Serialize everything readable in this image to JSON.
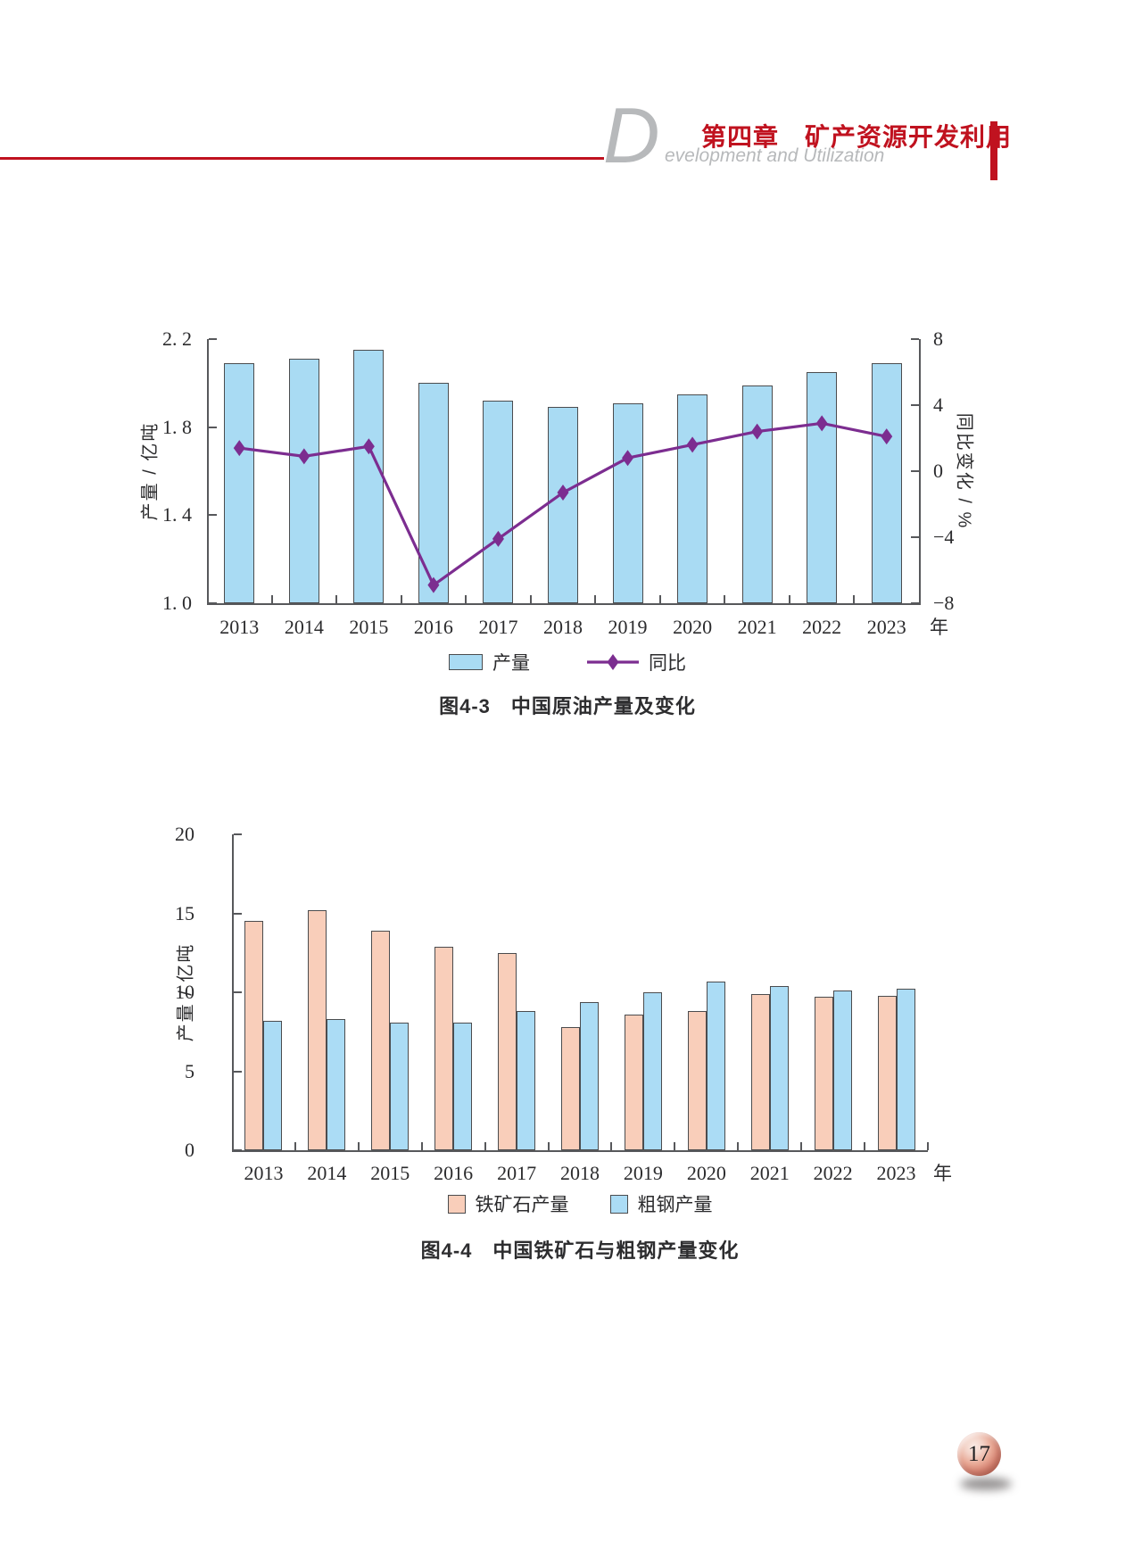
{
  "page": {
    "number": "17",
    "background_color": "#ffffff"
  },
  "header": {
    "big_letter": "D",
    "chapter_title": "第四章　矿产资源开发利用",
    "subtitle": "evelopment and Utilization",
    "accent_color": "#C0121F",
    "gray_color": "#b7b9bb"
  },
  "chart_data": [
    {
      "id": "figure-4-3",
      "type": "bar",
      "subtype": "combo-bar-line",
      "caption": "图4-3　中国原油产量及变化",
      "categories": [
        "2013",
        "2014",
        "2015",
        "2016",
        "2017",
        "2018",
        "2019",
        "2020",
        "2021",
        "2022",
        "2023"
      ],
      "x_suffix": "年",
      "left_axis": {
        "label": "产量 / 亿吨",
        "min": 1.0,
        "max": 2.2,
        "ticks": [
          {
            "value": 2.2,
            "label": "2. 2"
          },
          {
            "value": 1.8,
            "label": "1. 8"
          },
          {
            "value": 1.4,
            "label": "1. 4"
          },
          {
            "value": 1.0,
            "label": "1. 0"
          }
        ]
      },
      "right_axis": {
        "label": "同比变化 / %",
        "min": -8,
        "max": 8,
        "ticks": [
          {
            "value": 8,
            "label": "8"
          },
          {
            "value": 4,
            "label": "4"
          },
          {
            "value": 0,
            "label": "0"
          },
          {
            "value": -4,
            "label": "−4"
          },
          {
            "value": -8,
            "label": "−8"
          }
        ]
      },
      "series": [
        {
          "name": "产量",
          "type": "bar",
          "axis": "left",
          "color": "#A9DBF3",
          "border_color": "#4b4c4e",
          "values": [
            2.09,
            2.11,
            2.15,
            2.0,
            1.92,
            1.89,
            1.91,
            1.95,
            1.99,
            2.05,
            2.09
          ]
        },
        {
          "name": "同比",
          "type": "line",
          "axis": "right",
          "color": "#7C2D90",
          "values": [
            1.4,
            0.9,
            1.5,
            -6.9,
            -4.1,
            -1.3,
            0.8,
            1.6,
            2.4,
            2.9,
            2.1
          ]
        }
      ],
      "legend_position": "bottom",
      "grid": false
    },
    {
      "id": "figure-4-4",
      "type": "bar",
      "subtype": "grouped-bar",
      "caption": "图4-4　中国铁矿石与粗钢产量变化",
      "categories": [
        "2013",
        "2014",
        "2015",
        "2016",
        "2017",
        "2018",
        "2019",
        "2020",
        "2021",
        "2022",
        "2023"
      ],
      "x_suffix": "年",
      "y_axis": {
        "label": "产量 / 亿吨",
        "min": 0,
        "max": 20,
        "ticks": [
          {
            "value": 20,
            "label": "20"
          },
          {
            "value": 15,
            "label": "15"
          },
          {
            "value": 10,
            "label": "10"
          },
          {
            "value": 5,
            "label": "5"
          },
          {
            "value": 0,
            "label": "0"
          }
        ]
      },
      "series": [
        {
          "name": "铁矿石产量",
          "type": "bar",
          "color": "#F9CEBA",
          "border_color": "#4b4c4e",
          "values": [
            14.5,
            15.2,
            13.9,
            12.9,
            12.5,
            7.8,
            8.6,
            8.8,
            9.9,
            9.7,
            9.8
          ]
        },
        {
          "name": "粗钢产量",
          "type": "bar",
          "color": "#ABDCF5",
          "border_color": "#4b4c4e",
          "values": [
            8.2,
            8.3,
            8.1,
            8.1,
            8.8,
            9.4,
            10.0,
            10.7,
            10.4,
            10.1,
            10.2
          ]
        }
      ],
      "legend_position": "bottom",
      "grid": false
    }
  ]
}
